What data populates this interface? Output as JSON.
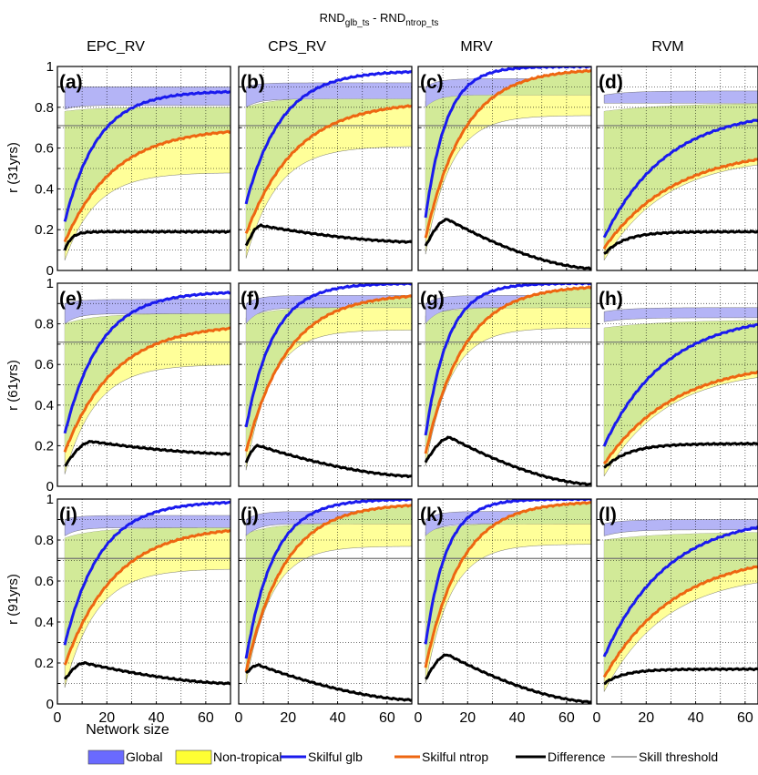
{
  "title": {
    "main": "RND",
    "sub1": "glb_ts",
    "sep": " - ",
    "main2": "RND",
    "sub2": "ntrop_ts"
  },
  "column_titles": [
    "EPC_RV",
    "CPS_RV",
    "MRV",
    "RVM"
  ],
  "row_ylabels": [
    "r (31yrs)",
    "r (61yrs)",
    "r (91yrs)"
  ],
  "xlabel": "Network size",
  "x_ticks": [
    "0",
    "20",
    "40",
    "60"
  ],
  "y_ticks": [
    "0",
    "0.2",
    "0.4",
    "0.6",
    "0.8",
    "1"
  ],
  "panel_labels": [
    "(a)",
    "(b)",
    "(c)",
    "(d)",
    "(e)",
    "(f)",
    "(g)",
    "(h)",
    "(i)",
    "(j)",
    "(k)",
    "(l)"
  ],
  "legend": [
    {
      "label": "Global",
      "color": "#6a6aff",
      "kind": "patch"
    },
    {
      "label": "Non-tropical",
      "color": "#ffff33",
      "kind": "patch"
    },
    {
      "label": "Skilful glb",
      "color": "#1a1aee",
      "kind": "line"
    },
    {
      "label": "Skilful ntrop",
      "color": "#ee6611",
      "kind": "line"
    },
    {
      "label": "Difference",
      "color": "#000000",
      "kind": "line"
    },
    {
      "label": "Skill  threshold",
      "color": "#707070",
      "kind": "thin"
    }
  ],
  "colors": {
    "global_band": "#b4b4f6",
    "ntrop_band": "#ffff99",
    "overlap_band": "#d2ea98",
    "glb_line": "#1a1aee",
    "ntrop_line": "#ee6611",
    "diff_line": "#000000",
    "threshold": "#707070"
  },
  "chart_data": {
    "type": "line",
    "x_range": [
      3,
      70
    ],
    "xlim": [
      0,
      70
    ],
    "ylim": [
      0,
      1
    ],
    "grid": true,
    "legend_position": "bottom",
    "skill_threshold": 0.71,
    "panels": [
      {
        "label": "(a)",
        "column": "EPC_RV",
        "row": "r (31yrs)",
        "glb_band": {
          "lo": [
            0.79,
            0.81
          ],
          "hi": [
            0.9,
            0.9
          ],
          "k": 0.2
        },
        "ntrop_band": {
          "lo": [
            0.05,
            0.48
          ],
          "hi": [
            0.78,
            0.8
          ],
          "k": 0.08
        },
        "skilful_glb": {
          "start": 0.24,
          "end": 0.88,
          "k": 0.075
        },
        "skilful_ntrop": {
          "start": 0.14,
          "end": 0.7,
          "k": 0.05
        },
        "difference": {
          "type": "plateau",
          "y0": 0.1,
          "peak": 0.2,
          "end": 0.19,
          "x_peak": 8
        }
      },
      {
        "label": "(b)",
        "column": "CPS_RV",
        "row": "r (31yrs)",
        "glb_band": {
          "lo": [
            0.8,
            0.84
          ],
          "hi": [
            0.9,
            0.92
          ],
          "k": 0.2
        },
        "ntrop_band": {
          "lo": [
            0.06,
            0.61
          ],
          "hi": [
            0.8,
            0.85
          ],
          "k": 0.08
        },
        "skilful_glb": {
          "start": 0.33,
          "end": 0.98,
          "k": 0.07
        },
        "skilful_ntrop": {
          "start": 0.18,
          "end": 0.83,
          "k": 0.05
        },
        "difference": {
          "type": "hump",
          "y0": 0.12,
          "peak": 0.22,
          "end": 0.14,
          "x_peak": 9
        }
      },
      {
        "label": "(c)",
        "column": "MRV",
        "row": "r (31yrs)",
        "glb_band": {
          "lo": [
            0.8,
            0.86
          ],
          "hi": [
            0.9,
            0.94
          ],
          "k": 0.2
        },
        "ntrop_band": {
          "lo": [
            0.08,
            0.76
          ],
          "hi": [
            0.83,
            0.88
          ],
          "k": 0.1
        },
        "skilful_glb": {
          "start": 0.26,
          "end": 1.0,
          "k": 0.12
        },
        "skilful_ntrop": {
          "start": 0.16,
          "end": 0.99,
          "k": 0.065
        },
        "difference": {
          "type": "hump",
          "y0": 0.12,
          "peak": 0.25,
          "end": 0.01,
          "x_peak": 12
        }
      },
      {
        "label": "(d)",
        "column": "RVM",
        "row": "r (31yrs)",
        "glb_band": {
          "lo": [
            0.82,
            0.82
          ],
          "hi": [
            0.86,
            0.88
          ],
          "k": 0.1
        },
        "ntrop_band": {
          "lo": [
            0.05,
            0.56
          ],
          "hi": [
            0.78,
            0.82
          ],
          "k": 0.04
        },
        "skilful_glb": {
          "start": 0.16,
          "end": 0.79,
          "k": 0.04
        },
        "skilful_ntrop": {
          "start": 0.11,
          "end": 0.6,
          "k": 0.035
        },
        "difference": {
          "type": "plateau",
          "y0": 0.08,
          "peak": 0.19,
          "end": 0.19,
          "x_peak": 25
        }
      },
      {
        "label": "(e)",
        "column": "EPC_RV",
        "row": "r (61yrs)",
        "glb_band": {
          "lo": [
            0.8,
            0.85
          ],
          "hi": [
            0.9,
            0.92
          ],
          "k": 0.2
        },
        "ntrop_band": {
          "lo": [
            0.06,
            0.6
          ],
          "hi": [
            0.8,
            0.85
          ],
          "k": 0.08
        },
        "skilful_glb": {
          "start": 0.26,
          "end": 0.96,
          "k": 0.07
        },
        "skilful_ntrop": {
          "start": 0.17,
          "end": 0.8,
          "k": 0.05
        },
        "difference": {
          "type": "hump",
          "y0": 0.1,
          "peak": 0.22,
          "end": 0.16,
          "x_peak": 14
        }
      },
      {
        "label": "(f)",
        "column": "CPS_RV",
        "row": "r (61yrs)",
        "glb_band": {
          "lo": [
            0.8,
            0.88
          ],
          "hi": [
            0.9,
            0.94
          ],
          "k": 0.2
        },
        "ntrop_band": {
          "lo": [
            0.08,
            0.77
          ],
          "hi": [
            0.83,
            0.88
          ],
          "k": 0.1
        },
        "skilful_glb": {
          "start": 0.29,
          "end": 1.0,
          "k": 0.09
        },
        "skilful_ntrop": {
          "start": 0.17,
          "end": 0.95,
          "k": 0.06
        },
        "difference": {
          "type": "hump",
          "y0": 0.12,
          "peak": 0.2,
          "end": 0.05,
          "x_peak": 8
        }
      },
      {
        "label": "(g)",
        "column": "MRV",
        "row": "r (61yrs)",
        "glb_band": {
          "lo": [
            0.8,
            0.88
          ],
          "hi": [
            0.9,
            0.94
          ],
          "k": 0.2
        },
        "ntrop_band": {
          "lo": [
            0.1,
            0.78
          ],
          "hi": [
            0.84,
            0.88
          ],
          "k": 0.1
        },
        "skilful_glb": {
          "start": 0.25,
          "end": 1.0,
          "k": 0.11
        },
        "skilful_ntrop": {
          "start": 0.16,
          "end": 0.99,
          "k": 0.065
        },
        "difference": {
          "type": "hump",
          "y0": 0.12,
          "peak": 0.24,
          "end": 0.01,
          "x_peak": 13
        }
      },
      {
        "label": "(h)",
        "column": "RVM",
        "row": "r (61yrs)",
        "glb_band": {
          "lo": [
            0.81,
            0.83
          ],
          "hi": [
            0.86,
            0.88
          ],
          "k": 0.1
        },
        "ntrop_band": {
          "lo": [
            0.05,
            0.58
          ],
          "hi": [
            0.78,
            0.82
          ],
          "k": 0.04
        },
        "skilful_glb": {
          "start": 0.2,
          "end": 0.85,
          "k": 0.04
        },
        "skilful_ntrop": {
          "start": 0.11,
          "end": 0.62,
          "k": 0.035
        },
        "difference": {
          "type": "plateau",
          "y0": 0.09,
          "peak": 0.21,
          "end": 0.21,
          "x_peak": 30
        }
      },
      {
        "label": "(i)",
        "column": "EPC_RV",
        "row": "r (91yrs)",
        "glb_band": {
          "lo": [
            0.82,
            0.86
          ],
          "hi": [
            0.9,
            0.92
          ],
          "k": 0.2
        },
        "ntrop_band": {
          "lo": [
            0.08,
            0.66
          ],
          "hi": [
            0.81,
            0.86
          ],
          "k": 0.08
        },
        "skilful_glb": {
          "start": 0.29,
          "end": 0.99,
          "k": 0.07
        },
        "skilful_ntrop": {
          "start": 0.19,
          "end": 0.87,
          "k": 0.05
        },
        "difference": {
          "type": "hump",
          "y0": 0.12,
          "peak": 0.2,
          "end": 0.1,
          "x_peak": 11
        }
      },
      {
        "label": "(j)",
        "column": "CPS_RV",
        "row": "r (91yrs)",
        "glb_band": {
          "lo": [
            0.82,
            0.88
          ],
          "hi": [
            0.9,
            0.94
          ],
          "k": 0.2
        },
        "ntrop_band": {
          "lo": [
            0.1,
            0.77
          ],
          "hi": [
            0.83,
            0.88
          ],
          "k": 0.1
        },
        "skilful_glb": {
          "start": 0.22,
          "end": 1.0,
          "k": 0.09
        },
        "skilful_ntrop": {
          "start": 0.16,
          "end": 0.98,
          "k": 0.065
        },
        "difference": {
          "type": "hump",
          "y0": 0.15,
          "peak": 0.19,
          "end": 0.02,
          "x_peak": 8
        }
      },
      {
        "label": "(k)",
        "column": "MRV",
        "row": "r (91yrs)",
        "glb_band": {
          "lo": [
            0.82,
            0.88
          ],
          "hi": [
            0.9,
            0.94
          ],
          "k": 0.2
        },
        "ntrop_band": {
          "lo": [
            0.1,
            0.78
          ],
          "hi": [
            0.84,
            0.88
          ],
          "k": 0.1
        },
        "skilful_glb": {
          "start": 0.29,
          "end": 1.0,
          "k": 0.12
        },
        "skilful_ntrop": {
          "start": 0.18,
          "end": 0.99,
          "k": 0.07
        },
        "difference": {
          "type": "hump",
          "y0": 0.12,
          "peak": 0.24,
          "end": 0.01,
          "x_peak": 12
        }
      },
      {
        "label": "(l)",
        "column": "RVM",
        "row": "r (91yrs)",
        "glb_band": {
          "lo": [
            0.82,
            0.85
          ],
          "hi": [
            0.88,
            0.9
          ],
          "k": 0.12
        },
        "ntrop_band": {
          "lo": [
            0.06,
            0.64
          ],
          "hi": [
            0.8,
            0.84
          ],
          "k": 0.04
        },
        "skilful_glb": {
          "start": 0.23,
          "end": 0.92,
          "k": 0.04
        },
        "skilful_ntrop": {
          "start": 0.13,
          "end": 0.74,
          "k": 0.035
        },
        "difference": {
          "type": "plateau",
          "y0": 0.1,
          "peak": 0.18,
          "end": 0.17,
          "x_peak": 25
        }
      }
    ]
  }
}
